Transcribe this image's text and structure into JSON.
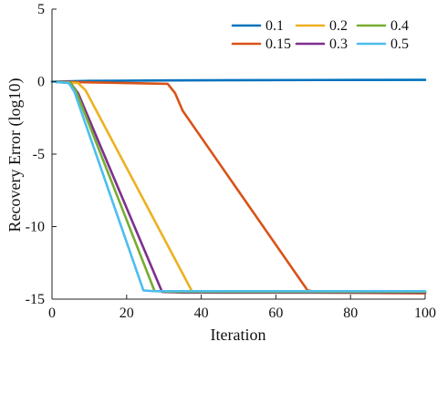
{
  "chart_data": {
    "type": "line",
    "title": "",
    "xlabel": "Iteration",
    "ylabel": "Recovery Error (log10)",
    "xlim": [
      0,
      100
    ],
    "ylim": [
      -15,
      5
    ],
    "x_ticks": [
      "0",
      "20",
      "40",
      "60",
      "80",
      "100"
    ],
    "y_ticks": [
      "5",
      "0",
      "-5",
      "-10",
      "-15"
    ],
    "x_tick_values": [
      0,
      20,
      40,
      60,
      80,
      100
    ],
    "y_tick_values": [
      5,
      0,
      -5,
      -10,
      -15
    ],
    "legend_position": "top-right",
    "grid": false,
    "series": [
      {
        "name": "0.1",
        "color": "#0072BD",
        "points": [
          [
            0,
            0
          ],
          [
            10,
            0.05
          ],
          [
            30,
            0.08
          ],
          [
            50,
            0.1
          ],
          [
            70,
            0.11
          ],
          [
            100,
            0.12
          ]
        ]
      },
      {
        "name": "0.15",
        "color": "#D95319",
        "points": [
          [
            0,
            0
          ],
          [
            10,
            -0.05
          ],
          [
            31,
            -0.15
          ],
          [
            33,
            -0.8
          ],
          [
            35,
            -2.0
          ],
          [
            68.5,
            -14.4
          ],
          [
            72,
            -14.55
          ],
          [
            100,
            -14.6
          ]
        ]
      },
      {
        "name": "0.2",
        "color": "#EDB120",
        "points": [
          [
            0,
            0
          ],
          [
            7,
            -0.1
          ],
          [
            9,
            -0.6
          ],
          [
            37.5,
            -14.45
          ],
          [
            45,
            -14.55
          ],
          [
            100,
            -14.55
          ]
        ]
      },
      {
        "name": "0.3",
        "color": "#7E2F8E",
        "points": [
          [
            0,
            0
          ],
          [
            5,
            -0.1
          ],
          [
            7,
            -0.8
          ],
          [
            29.5,
            -14.5
          ],
          [
            35,
            -14.55
          ],
          [
            100,
            -14.55
          ]
        ]
      },
      {
        "name": "0.4",
        "color": "#77AC30",
        "points": [
          [
            0,
            0
          ],
          [
            5,
            -0.1
          ],
          [
            6.5,
            -0.7
          ],
          [
            27.5,
            -14.45
          ],
          [
            33,
            -14.5
          ],
          [
            100,
            -14.5
          ]
        ]
      },
      {
        "name": "0.5",
        "color": "#4DBEEE",
        "points": [
          [
            0,
            0
          ],
          [
            4.5,
            -0.1
          ],
          [
            6,
            -0.7
          ],
          [
            24.5,
            -14.4
          ],
          [
            27,
            -14.45
          ],
          [
            100,
            -14.45
          ]
        ]
      }
    ],
    "legend_order": [
      "0.1",
      "0.2",
      "0.4",
      "0.15",
      "0.3",
      "0.5"
    ]
  }
}
